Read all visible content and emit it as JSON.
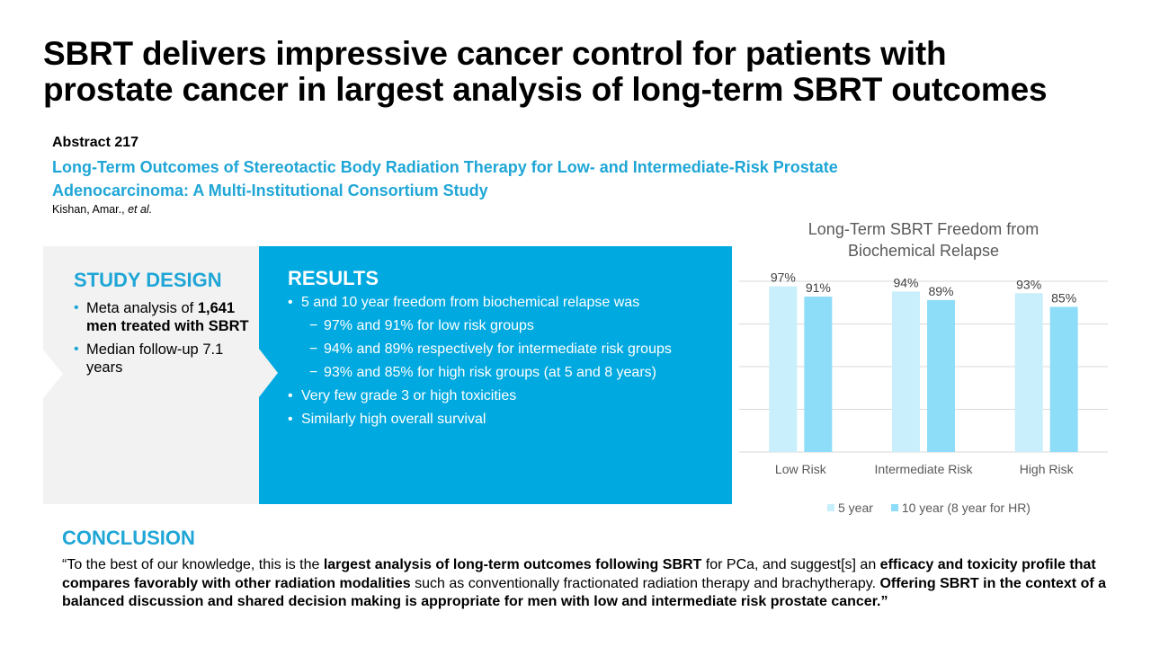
{
  "title": {
    "line1": "SBRT delivers impressive cancer control for patients with",
    "line2": "prostate cancer in largest analysis of long-term SBRT outcomes"
  },
  "abstract": {
    "label": "Abstract 217",
    "title_line1": "Long-Term Outcomes of Stereotactic Body Radiation Therapy for Low- and Intermediate-Risk Prostate",
    "title_line2": "Adenocarcinoma: A Multi-Institutional  Consortium Study",
    "authors": "Kishan, Amar., ",
    "authors_etal": "et al."
  },
  "study_design": {
    "heading": "STUDY DESIGN",
    "items": [
      {
        "plain": "Meta analysis of ",
        "bold": "1,641 men treated with SBRT"
      },
      {
        "plain": "Median follow-up 7.1 years",
        "bold": ""
      }
    ]
  },
  "results": {
    "heading": "RESULTS",
    "bullet1": "5 and  10 year  freedom from biochemical relapse was",
    "sub": [
      "97% and  91% for low risk groups",
      "94% and  89% respectively for intermediate risk groups",
      "93% and  85% for high risk groups (at 5 and 8 years)"
    ],
    "bullet2": "Very few grade 3 or high toxicities",
    "bullet3": "Similarly high overall survival"
  },
  "chart_data": {
    "type": "bar",
    "title": "Long-Term SBRT Freedom from Biochemical Relapse",
    "title_line1": "Long-Term  SBRT Freedom from",
    "title_line2": "Biochemical Relapse",
    "categories": [
      "Low Risk",
      "Intermediate Risk",
      "High Risk"
    ],
    "series": [
      {
        "name": "5 year",
        "values": [
          97,
          94,
          93
        ],
        "color": "#C8EFFB"
      },
      {
        "name": "10 year (8 year for HR)",
        "values": [
          91,
          89,
          85
        ],
        "color": "#8EDDF8"
      }
    ],
    "value_suffix": "%",
    "ylim": [
      0,
      100
    ],
    "yticks": [
      0,
      25,
      50,
      75,
      100
    ],
    "y_tick_labels_shown": false,
    "grid": true,
    "legend": "bottom",
    "xlabel": "",
    "ylabel": ""
  },
  "conclusion": {
    "heading": "CONCLUSION",
    "segments": [
      {
        "t": "“To the best of our knowledge, this is the ",
        "b": false
      },
      {
        "t": "largest analysis of long-term outcomes following SBRT",
        "b": true
      },
      {
        "t": " for PCa, and suggest[s] an ",
        "b": false
      },
      {
        "t": "efficacy and toxicity profile that compares favorably with other radiation modalities",
        "b": true
      },
      {
        "t": " such as conventionally fractionated radiation therapy and brachytherapy. ",
        "b": false
      },
      {
        "t": "Offering SBRT in the context of a balanced discussion and shared decision making is appropriate for men with low and intermediate risk prostate cancer.”",
        "b": true
      }
    ]
  },
  "colors": {
    "accent_blue": "#00A9E0",
    "heading_blue": "#1FA6D6",
    "panel_grey": "#F2F2F2"
  }
}
